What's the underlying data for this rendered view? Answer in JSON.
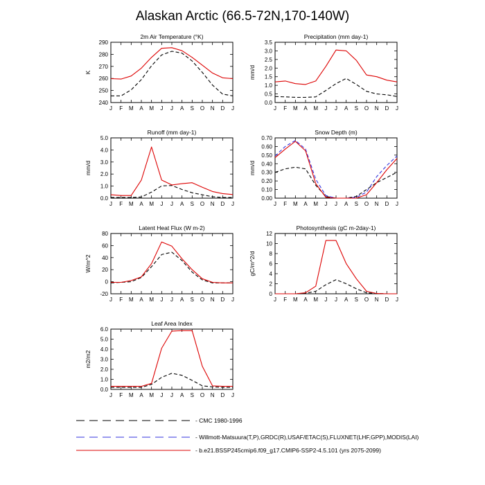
{
  "figure_title": "Alaskan Arctic (66.5-72N,170-140W)",
  "colors": {
    "cmc": "#000000",
    "obs": "#3333dd",
    "model": "#dd0000",
    "axis": "#000000"
  },
  "legend": [
    {
      "key": "cmc",
      "label": "CMC 1980-1996",
      "style": "dashed"
    },
    {
      "key": "obs",
      "label": "Willmott-Matsuura(T,P),GRDC(R),USAF/ETAC(S),FLUXNET(LHF,GPP),MODIS(LAI)",
      "style": "dashed"
    },
    {
      "key": "model",
      "label": "b.e21.BSSP245cmip6.f09_g17.CMIP6-SSP2-4.5.101 (yrs 2075-2099)",
      "style": "solid"
    }
  ],
  "chart_data": [
    {
      "type": "line",
      "title": "2m Air Temperature (°K)",
      "ylabel": "K",
      "ylim": [
        240,
        290
      ],
      "yticks": [
        240,
        250,
        260,
        270,
        280,
        290
      ],
      "categories": [
        "J",
        "F",
        "M",
        "A",
        "M",
        "J",
        "J",
        "A",
        "S",
        "O",
        "N",
        "D",
        "J"
      ],
      "series": [
        {
          "key": "model",
          "values": [
            259.8,
            259.5,
            262,
            268.5,
            277.5,
            285,
            285.5,
            283,
            277.5,
            271,
            264.5,
            260.5,
            259.8
          ]
        },
        {
          "key": "cmc",
          "values": [
            245.5,
            245.5,
            250.5,
            259,
            270.5,
            279.5,
            282.5,
            281,
            274.5,
            265,
            254.5,
            247,
            245.5
          ]
        }
      ]
    },
    {
      "type": "line",
      "title": "Precipitation (mm day-1)",
      "ylabel": "mm/d",
      "ylim": [
        0,
        3.5
      ],
      "yticks": [
        "0.0",
        "0.5",
        "1.0",
        "1.5",
        "2.0",
        "2.5",
        "3.0",
        "3.5"
      ],
      "categories": [
        "J",
        "F",
        "M",
        "A",
        "M",
        "J",
        "J",
        "A",
        "S",
        "O",
        "N",
        "D",
        "J"
      ],
      "series": [
        {
          "key": "model",
          "values": [
            1.2,
            1.25,
            1.1,
            1.05,
            1.25,
            2.1,
            3.05,
            3.0,
            2.45,
            1.6,
            1.5,
            1.3,
            1.2
          ]
        },
        {
          "key": "cmc",
          "values": [
            0.35,
            0.33,
            0.3,
            0.3,
            0.33,
            0.7,
            1.1,
            1.4,
            1.05,
            0.65,
            0.5,
            0.45,
            0.35
          ]
        }
      ]
    },
    {
      "type": "line",
      "title": "Runoff (mm day-1)",
      "ylabel": "mm/d",
      "ylim": [
        0,
        5
      ],
      "yticks": [
        "0.0",
        "1.0",
        "2.0",
        "3.0",
        "4.0",
        "5.0"
      ],
      "categories": [
        "J",
        "F",
        "M",
        "A",
        "M",
        "J",
        "J",
        "A",
        "S",
        "O",
        "N",
        "D",
        "J"
      ],
      "series": [
        {
          "key": "model",
          "values": [
            0.28,
            0.22,
            0.22,
            1.5,
            4.25,
            1.5,
            1.1,
            1.2,
            1.28,
            0.9,
            0.55,
            0.38,
            0.3
          ]
        },
        {
          "key": "cmc",
          "values": [
            0.05,
            0.05,
            0.05,
            0.1,
            0.5,
            1.02,
            1.05,
            0.72,
            0.45,
            0.28,
            0.12,
            0.06,
            0.05
          ]
        }
      ]
    },
    {
      "type": "line",
      "title": "Snow Depth (m)",
      "ylabel": "mm/d",
      "ylim": [
        0,
        0.7
      ],
      "yticks": [
        "0.00",
        "0.10",
        "0.20",
        "0.30",
        "0.40",
        "0.50",
        "0.60",
        "0.70"
      ],
      "categories": [
        "J",
        "F",
        "M",
        "A",
        "M",
        "J",
        "J",
        "A",
        "S",
        "O",
        "N",
        "D",
        "J"
      ],
      "series": [
        {
          "key": "model",
          "values": [
            0.47,
            0.57,
            0.66,
            0.55,
            0.17,
            0.01,
            0.0,
            0.0,
            0.0,
            0.04,
            0.18,
            0.33,
            0.46
          ]
        },
        {
          "key": "obs",
          "values": [
            0.49,
            0.6,
            0.67,
            0.57,
            0.22,
            0.03,
            0.0,
            0.0,
            0.01,
            0.07,
            0.25,
            0.38,
            0.49
          ]
        },
        {
          "key": "cmc",
          "values": [
            0.3,
            0.34,
            0.36,
            0.34,
            0.15,
            0.02,
            0.0,
            0.0,
            0.02,
            0.1,
            0.18,
            0.24,
            0.3
          ]
        }
      ]
    },
    {
      "type": "line",
      "title": "Latent Heat Flux (W m-2)",
      "ylabel": "W/m^2",
      "ylim": [
        -20,
        80
      ],
      "yticks": [
        -20,
        0,
        20,
        40,
        60,
        80
      ],
      "categories": [
        "J",
        "F",
        "M",
        "A",
        "M",
        "J",
        "J",
        "A",
        "S",
        "O",
        "N",
        "D",
        "J"
      ],
      "series": [
        {
          "key": "model",
          "values": [
            -1,
            -1,
            2,
            8,
            30,
            66,
            59,
            38,
            20,
            5,
            -1,
            -2,
            -2
          ]
        },
        {
          "key": "cmc",
          "values": [
            -2,
            -1,
            0,
            7,
            25,
            45,
            49,
            35,
            16,
            3,
            -2,
            -2,
            -2
          ]
        }
      ]
    },
    {
      "type": "line",
      "title": "Photosynthesis (gC m-2day-1)",
      "ylabel": "gC/m^2/d",
      "ylim": [
        0,
        12
      ],
      "yticks": [
        0,
        2,
        4,
        6,
        8,
        10,
        12
      ],
      "categories": [
        "J",
        "F",
        "M",
        "A",
        "M",
        "J",
        "J",
        "A",
        "S",
        "O",
        "N",
        "D",
        "J"
      ],
      "series": [
        {
          "key": "model",
          "values": [
            0,
            0,
            0,
            0.2,
            1.5,
            10.6,
            10.6,
            6.0,
            3.0,
            0.5,
            0.05,
            0,
            0
          ]
        },
        {
          "key": "cmc",
          "values": [
            0,
            0,
            0,
            0.1,
            0.5,
            1.8,
            2.8,
            2.0,
            1.0,
            0.2,
            0.05,
            0,
            0
          ]
        }
      ]
    },
    {
      "type": "line",
      "title": "Leaf Area Index",
      "ylabel": "m2/m2",
      "ylim": [
        0,
        6
      ],
      "yticks": [
        "0.0",
        "1.0",
        "2.0",
        "3.0",
        "4.0",
        "5.0",
        "6.0"
      ],
      "categories": [
        "J",
        "F",
        "M",
        "A",
        "M",
        "J",
        "J",
        "A",
        "S",
        "O",
        "N",
        "D",
        "J"
      ],
      "series": [
        {
          "key": "model",
          "values": [
            0.3,
            0.3,
            0.3,
            0.3,
            0.6,
            4.1,
            5.8,
            5.85,
            5.85,
            2.3,
            0.35,
            0.3,
            0.3
          ]
        },
        {
          "key": "cmc",
          "values": [
            0.2,
            0.2,
            0.2,
            0.2,
            0.5,
            1.2,
            1.6,
            1.4,
            0.9,
            0.35,
            0.25,
            0.2,
            0.2
          ]
        }
      ]
    }
  ]
}
